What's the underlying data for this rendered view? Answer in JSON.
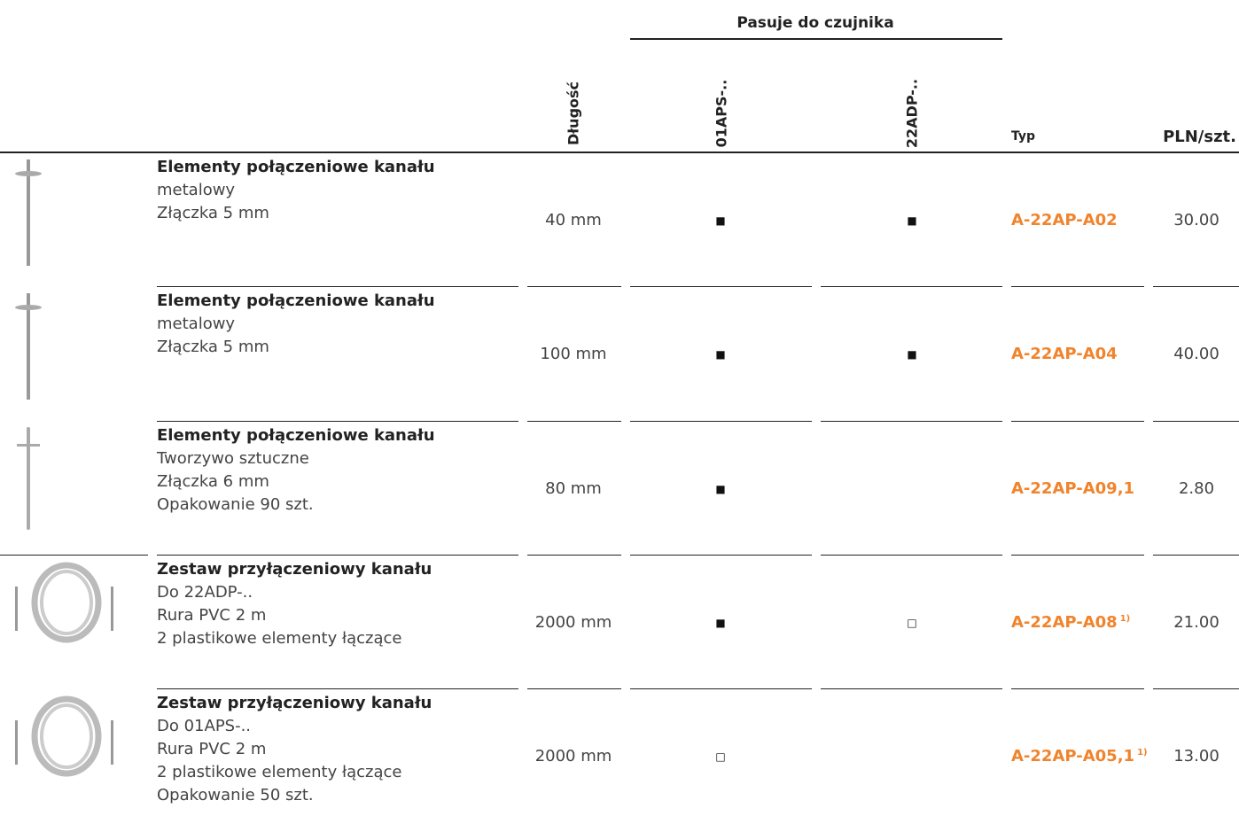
{
  "header": {
    "group_title": "Pasuje do czujnika",
    "columns": {
      "length": "Długość",
      "sensor_1": "01APS-..",
      "sensor_2": "22ADP-..",
      "type": "Typ",
      "price": "PLN/szt."
    }
  },
  "rows": [
    {
      "title": "Elementy połączeniowe kanału",
      "lines": [
        "metalowy",
        "Złączka 5 mm"
      ],
      "length": "40 mm",
      "sensor_1": "■",
      "sensor_2": "■",
      "type": "A-22AP-A02",
      "price": "30.00"
    },
    {
      "title": "Elementy połączeniowe kanału",
      "lines": [
        "metalowy",
        "Złączka 5 mm"
      ],
      "length": "100 mm",
      "sensor_1": "■",
      "sensor_2": "■",
      "type": "A-22AP-A04",
      "price": "40.00"
    },
    {
      "title": "Elementy połączeniowe kanału",
      "lines": [
        "Tworzywo sztuczne",
        "Złączka 6 mm",
        "Opakowanie 90 szt."
      ],
      "length": "80 mm",
      "sensor_1": "■",
      "type": "A-22AP-A09,1",
      "price": "2.80"
    },
    {
      "title": "Zestaw przyłączeniowy kanału",
      "lines": [
        "Do 22ADP-..",
        "Rura PVC 2 m",
        "2 plastikowe elementy łączące"
      ],
      "length": "2000 mm",
      "sensor_1": "■",
      "sensor_2": "□",
      "type": "A-22AP-A08",
      "footnote": "1)",
      "price": "21.00"
    },
    {
      "title": "Zestaw przyłączeniowy kanału",
      "lines": [
        "Do 01APS-..",
        "Rura PVC 2 m",
        "2 plastikowe elementy łączące",
        "Opakowanie 50 szt."
      ],
      "length": "2000 mm",
      "sensor_1": "□",
      "type": "A-22AP-A05,1",
      "footnote": "1)",
      "price": "13.00"
    }
  ]
}
